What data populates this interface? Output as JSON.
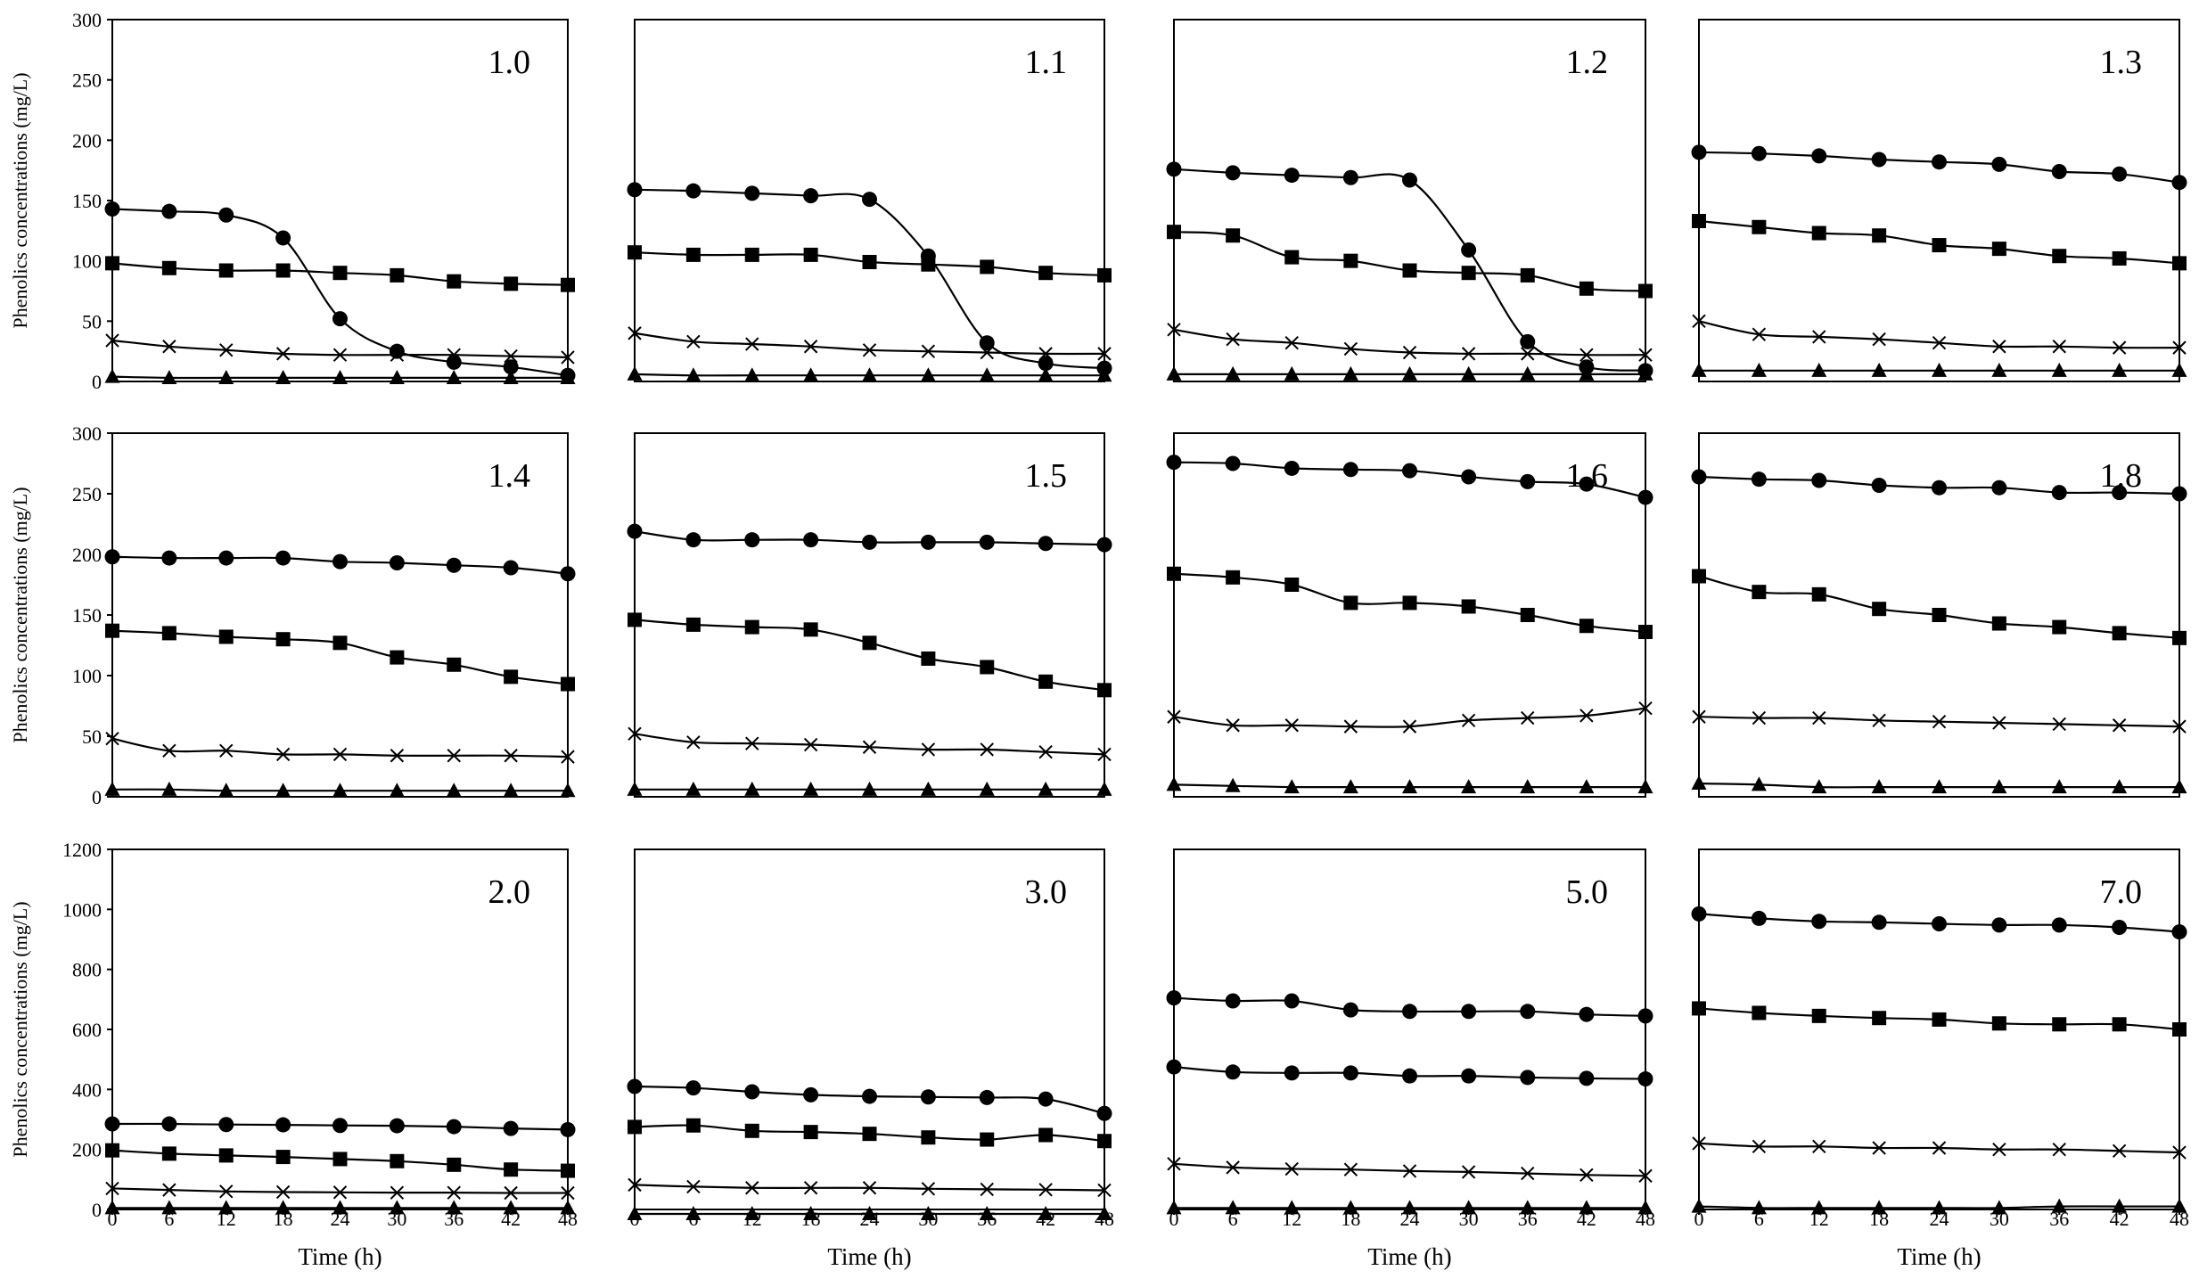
{
  "chart_data": {
    "type": "line",
    "ylabel": "Phenolics concentrations (mg/L)",
    "xlabel": "Time (h)",
    "x": [
      0,
      6,
      12,
      18,
      24,
      30,
      36,
      42,
      48
    ],
    "x_tick_labels": [
      "0",
      "6",
      "12",
      "18",
      "24",
      "30",
      "36",
      "42",
      "48"
    ],
    "xlim": [
      0,
      48
    ],
    "row_y_ticks": [
      [
        "0",
        "50",
        "100",
        "150",
        "200",
        "250",
        "300"
      ],
      [
        "0",
        "50",
        "100",
        "150",
        "200",
        "250",
        "300"
      ],
      [
        "0",
        "200",
        "400",
        "600",
        "800",
        "1000",
        "1200"
      ]
    ],
    "row_ylim": [
      [
        0,
        300
      ],
      [
        0,
        300
      ],
      [
        0,
        1200
      ]
    ],
    "marker_legend": [
      "circle",
      "square",
      "x",
      "triangle"
    ],
    "colors": {
      "line": "#000000",
      "background": "#ffffff"
    },
    "panels": [
      {
        "label": "1.0",
        "series": [
          {
            "marker": "circle",
            "values": [
              143,
              141,
              138,
              119,
              52,
              25,
              16,
              12,
              5
            ]
          },
          {
            "marker": "square",
            "values": [
              98,
              94,
              92,
              92,
              90,
              88,
              83,
              81,
              80
            ]
          },
          {
            "marker": "x",
            "values": [
              34,
              29,
              26,
              23,
              22,
              22,
              22,
              21,
              20
            ]
          },
          {
            "marker": "triangle",
            "values": [
              4,
              3,
              3,
              3,
              3,
              3,
              3,
              3,
              3
            ]
          }
        ]
      },
      {
        "label": "1.1",
        "series": [
          {
            "marker": "circle",
            "values": [
              159,
              158,
              156,
              154,
              151,
              104,
              32,
              15,
              11
            ]
          },
          {
            "marker": "square",
            "values": [
              107,
              105,
              105,
              105,
              99,
              97,
              95,
              90,
              88
            ]
          },
          {
            "marker": "x",
            "values": [
              40,
              33,
              31,
              29,
              26,
              25,
              24,
              23,
              23
            ]
          },
          {
            "marker": "triangle",
            "values": [
              6,
              5,
              5,
              5,
              5,
              5,
              5,
              5,
              5
            ]
          }
        ]
      },
      {
        "label": "1.2",
        "series": [
          {
            "marker": "circle",
            "values": [
              176,
              173,
              171,
              169,
              167,
              109,
              33,
              12,
              9
            ]
          },
          {
            "marker": "square",
            "values": [
              124,
              121,
              103,
              100,
              92,
              90,
              88,
              77,
              75
            ]
          },
          {
            "marker": "x",
            "values": [
              43,
              35,
              32,
              27,
              24,
              23,
              23,
              22,
              22
            ]
          },
          {
            "marker": "triangle",
            "values": [
              6,
              6,
              6,
              6,
              6,
              6,
              6,
              6,
              6
            ]
          }
        ]
      },
      {
        "label": "1.3",
        "series": [
          {
            "marker": "circle",
            "values": [
              190,
              189,
              187,
              184,
              182,
              180,
              174,
              172,
              165
            ]
          },
          {
            "marker": "square",
            "values": [
              133,
              128,
              123,
              121,
              113,
              110,
              104,
              102,
              98
            ]
          },
          {
            "marker": "x",
            "values": [
              50,
              39,
              37,
              35,
              32,
              29,
              29,
              28,
              28
            ]
          },
          {
            "marker": "triangle",
            "values": [
              9,
              9,
              9,
              9,
              9,
              9,
              9,
              9,
              9
            ]
          }
        ]
      },
      {
        "label": "1.4",
        "series": [
          {
            "marker": "circle",
            "values": [
              198,
              197,
              197,
              197,
              194,
              193,
              191,
              189,
              184
            ]
          },
          {
            "marker": "square",
            "values": [
              137,
              135,
              132,
              130,
              127,
              115,
              109,
              99,
              93
            ]
          },
          {
            "marker": "x",
            "values": [
              48,
              38,
              38,
              35,
              35,
              34,
              34,
              34,
              33
            ]
          },
          {
            "marker": "triangle",
            "values": [
              6,
              6,
              5,
              5,
              5,
              5,
              5,
              5,
              5
            ]
          }
        ]
      },
      {
        "label": "1.5",
        "series": [
          {
            "marker": "circle",
            "values": [
              219,
              212,
              212,
              212,
              210,
              210,
              210,
              209,
              208
            ]
          },
          {
            "marker": "square",
            "values": [
              146,
              142,
              140,
              138,
              127,
              114,
              107,
              95,
              88
            ]
          },
          {
            "marker": "x",
            "values": [
              52,
              45,
              44,
              43,
              41,
              39,
              39,
              37,
              35
            ]
          },
          {
            "marker": "triangle",
            "values": [
              6,
              6,
              6,
              6,
              6,
              6,
              6,
              6,
              6
            ]
          }
        ]
      },
      {
        "label": "1.6",
        "series": [
          {
            "marker": "circle",
            "values": [
              276,
              275,
              271,
              270,
              269,
              264,
              260,
              258,
              247
            ]
          },
          {
            "marker": "square",
            "values": [
              184,
              181,
              175,
              160,
              160,
              157,
              150,
              141,
              136
            ]
          },
          {
            "marker": "x",
            "values": [
              66,
              59,
              59,
              58,
              58,
              63,
              65,
              67,
              73
            ]
          },
          {
            "marker": "triangle",
            "values": [
              10,
              9,
              8,
              8,
              8,
              8,
              8,
              8,
              8
            ]
          }
        ]
      },
      {
        "label": "1.8",
        "series": [
          {
            "marker": "circle",
            "values": [
              264,
              262,
              261,
              257,
              255,
              255,
              251,
              251,
              250
            ]
          },
          {
            "marker": "square",
            "values": [
              182,
              169,
              167,
              155,
              150,
              143,
              140,
              135,
              131
            ]
          },
          {
            "marker": "x",
            "values": [
              66,
              65,
              65,
              63,
              62,
              61,
              60,
              59,
              58
            ]
          },
          {
            "marker": "triangle",
            "values": [
              11,
              10,
              8,
              8,
              8,
              8,
              8,
              8,
              8
            ]
          }
        ]
      },
      {
        "label": "2.0",
        "series": [
          {
            "marker": "circle",
            "values": [
              285,
              285,
              283,
              282,
              280,
              279,
              276,
              270,
              266
            ]
          },
          {
            "marker": "square",
            "values": [
              197,
              186,
              180,
              175,
              168,
              161,
              149,
              133,
              129
            ]
          },
          {
            "marker": "x",
            "values": [
              70,
              65,
              60,
              58,
              57,
              56,
              56,
              55,
              55
            ]
          },
          {
            "marker": "triangle",
            "values": [
              5,
              5,
              5,
              5,
              5,
              5,
              5,
              5,
              5
            ]
          }
        ]
      },
      {
        "label": "3.0",
        "series": [
          {
            "marker": "circle",
            "values": [
              410,
              405,
              392,
              382,
              377,
              375,
              373,
              368,
              320
            ]
          },
          {
            "marker": "square",
            "values": [
              275,
              280,
              262,
              258,
              252,
              240,
              233,
              248,
              228
            ]
          },
          {
            "marker": "x",
            "values": [
              82,
              76,
              72,
              72,
              72,
              69,
              67,
              66,
              64
            ]
          },
          {
            "marker": "triangle",
            "values": [
              -15,
              -15,
              -15,
              -15,
              -15,
              -15,
              -15,
              -15,
              -15
            ]
          }
        ]
      },
      {
        "label": "5.0",
        "series": [
          {
            "marker": "circle",
            "values": [
              705,
              695,
              695,
              665,
              660,
              660,
              660,
              650,
              645
            ]
          },
          {
            "marker": "circle",
            "values": [
              475,
              458,
              455,
              455,
              445,
              445,
              440,
              437,
              435
            ]
          },
          {
            "marker": "x",
            "values": [
              152,
              140,
              135,
              133,
              128,
              125,
              120,
              115,
              112
            ]
          },
          {
            "marker": "triangle",
            "values": [
              5,
              5,
              5,
              5,
              5,
              5,
              5,
              5,
              5
            ]
          }
        ]
      },
      {
        "label": "7.0",
        "series": [
          {
            "marker": "circle",
            "values": [
              985,
              970,
              960,
              957,
              952,
              948,
              948,
              940,
              925
            ]
          },
          {
            "marker": "square",
            "values": [
              670,
              655,
              645,
              638,
              633,
              620,
              617,
              617,
              600
            ]
          },
          {
            "marker": "x",
            "values": [
              220,
              210,
              210,
              205,
              205,
              200,
              200,
              195,
              190
            ]
          },
          {
            "marker": "triangle",
            "values": [
              10,
              5,
              5,
              5,
              5,
              5,
              10,
              10,
              10
            ]
          }
        ]
      }
    ]
  }
}
